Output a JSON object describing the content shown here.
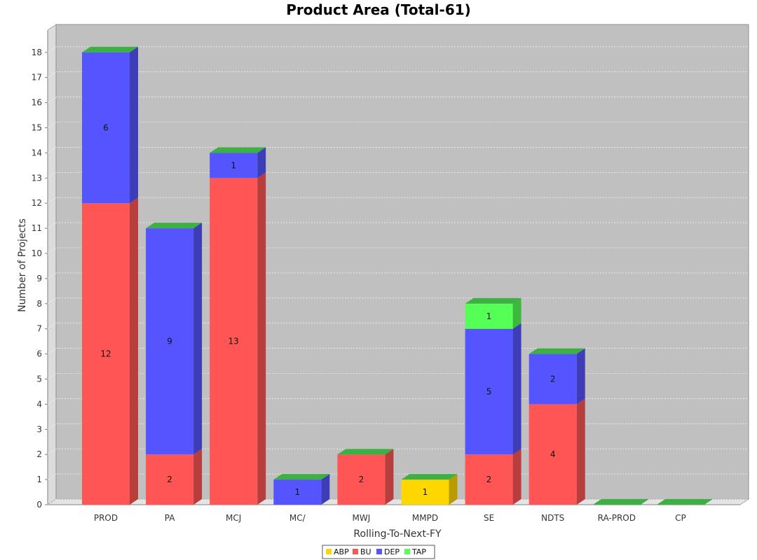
{
  "chart_data": {
    "type": "bar",
    "stacked": true,
    "title": "Product Area (Total-61)",
    "xlabel": "Rolling-To-Next-FY",
    "ylabel": "Number of Projects",
    "ylim": [
      0,
      19
    ],
    "yticks": [
      0,
      1,
      2,
      3,
      4,
      5,
      6,
      7,
      8,
      9,
      10,
      11,
      12,
      13,
      14,
      15,
      16,
      17,
      18
    ],
    "grid": true,
    "legend_position": "bottom",
    "categories": [
      "PROD",
      "PA",
      "MCJ",
      "MC/",
      "MWJ",
      "MMPD",
      "SE",
      "NDTS",
      "RA-PROD",
      "CP"
    ],
    "series": [
      {
        "name": "ABP",
        "color": "#FFD700",
        "values": [
          0,
          0,
          0,
          0,
          0,
          1,
          0,
          0,
          0,
          0
        ]
      },
      {
        "name": "BU",
        "color": "#FF5555",
        "values": [
          12,
          2,
          13,
          0,
          2,
          0,
          2,
          4,
          0,
          0
        ]
      },
      {
        "name": "DEP",
        "color": "#5555FF",
        "values": [
          6,
          9,
          1,
          1,
          0,
          0,
          5,
          2,
          0,
          0
        ]
      },
      {
        "name": "TAP",
        "color": "#55FF55",
        "values": [
          0,
          0,
          0,
          0,
          0,
          0,
          1,
          0,
          0,
          0
        ]
      }
    ],
    "cap_color": "#3CB043",
    "plot_background": "#C0C0C0"
  }
}
